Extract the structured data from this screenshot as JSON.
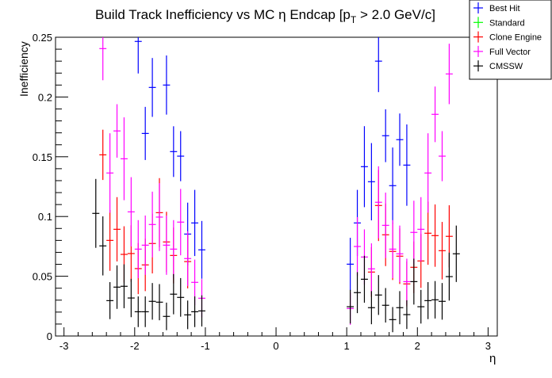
{
  "chart_data": {
    "type": "scatter",
    "title_main": "Build Track Inefficiency vs MC η Endcap [p",
    "title_sub": "T",
    "title_tail": " > 2.0 GeV/c]",
    "xlabel": "η",
    "ylabel": "Inefficiency",
    "xlim": [
      -3.12,
      3.13
    ],
    "ylim": [
      0,
      0.25
    ],
    "xticks": [
      "-3",
      "-2",
      "-1",
      "0",
      "1",
      "2",
      "3"
    ],
    "xtick_values": [
      -3,
      -2,
      -1,
      0,
      1,
      2,
      3
    ],
    "yticks": [
      "0",
      "0.05",
      "0.1",
      "0.15",
      "0.2",
      "0.25"
    ],
    "ytick_values": [
      0,
      0.05,
      0.1,
      0.15,
      0.2,
      0.25
    ],
    "bin_width": 0.1,
    "x": [
      -2.55,
      -2.45,
      -2.35,
      -2.25,
      -2.15,
      -2.05,
      -1.95,
      -1.85,
      -1.75,
      -1.65,
      -1.55,
      -1.45,
      -1.35,
      -1.25,
      -1.15,
      -1.05,
      1.05,
      1.15,
      1.25,
      1.35,
      1.45,
      1.55,
      1.65,
      1.75,
      1.85,
      1.95,
      2.05,
      2.15,
      2.25,
      2.35,
      2.45,
      2.55
    ],
    "legend_position": "top-right",
    "series": [
      {
        "name": "Best Hit",
        "color": "#0000ff",
        "values": [
          null,
          null,
          null,
          null,
          null,
          null,
          0.2465,
          0.1695,
          0.208,
          null,
          0.21,
          0.1543,
          0.1505,
          0.0853,
          0.0946,
          0.0721,
          0.0601,
          0.0946,
          0.1417,
          0.1291,
          0.23,
          0.1676,
          0.1258,
          0.1643,
          0.143,
          null,
          null,
          null,
          null,
          null,
          null,
          null
        ]
      },
      {
        "name": "Standard",
        "color": "#00ff00",
        "values": [
          null,
          null,
          null,
          null,
          null,
          null,
          null,
          null,
          null,
          null,
          null,
          null,
          null,
          null,
          null,
          null,
          null,
          null,
          null,
          null,
          null,
          null,
          null,
          null,
          null,
          null,
          null,
          null,
          null,
          null,
          null,
          null
        ]
      },
      {
        "name": "Clone Engine",
        "color": "#ff0000",
        "values": [
          null,
          0.1516,
          0.08,
          0.0893,
          0.0683,
          0.069,
          0.0564,
          0.0595,
          0.0774,
          0.1032,
          0.0787,
          0.0674,
          null,
          0.0623,
          null,
          null,
          null,
          null,
          null,
          0.0535,
          0.1092,
          0.0847,
          0.0708,
          0.0668,
          0.0436,
          0.0575,
          0.0628,
          0.086,
          0.084,
          0.0714,
          0.0834,
          null
        ]
      },
      {
        "name": "Full Vector",
        "color": "#ff00ff",
        "values": [
          null,
          0.2405,
          0.1364,
          0.1716,
          0.1483,
          0.1039,
          0.0727,
          0.076,
          0.0933,
          0.0995,
          0.076,
          0.0727,
          0.0953,
          0.0648,
          0.0449,
          0.0316,
          0.023,
          0.0749,
          0.0661,
          0.0562,
          0.1119,
          0.0926,
          0.0727,
          0.0688,
          0.0455,
          0.0867,
          0.0893,
          0.1364,
          0.1855,
          0.1505,
          0.2193,
          null
        ]
      },
      {
        "name": "CMSSW",
        "color": "#000000",
        "values": [
          0.1026,
          0.0754,
          0.0296,
          0.0409,
          0.0416,
          0.0318,
          0.0203,
          0.0203,
          0.029,
          0.0283,
          0.0164,
          0.035,
          0.0323,
          0.0177,
          0.0203,
          0.021,
          0.0245,
          0.0363,
          0.0475,
          0.0237,
          0.0343,
          0.0257,
          0.0137,
          0.0237,
          0.0179,
          0.0455,
          0.0245,
          0.0296,
          0.0303,
          0.029,
          0.0497,
          0.0688
        ]
      }
    ]
  }
}
